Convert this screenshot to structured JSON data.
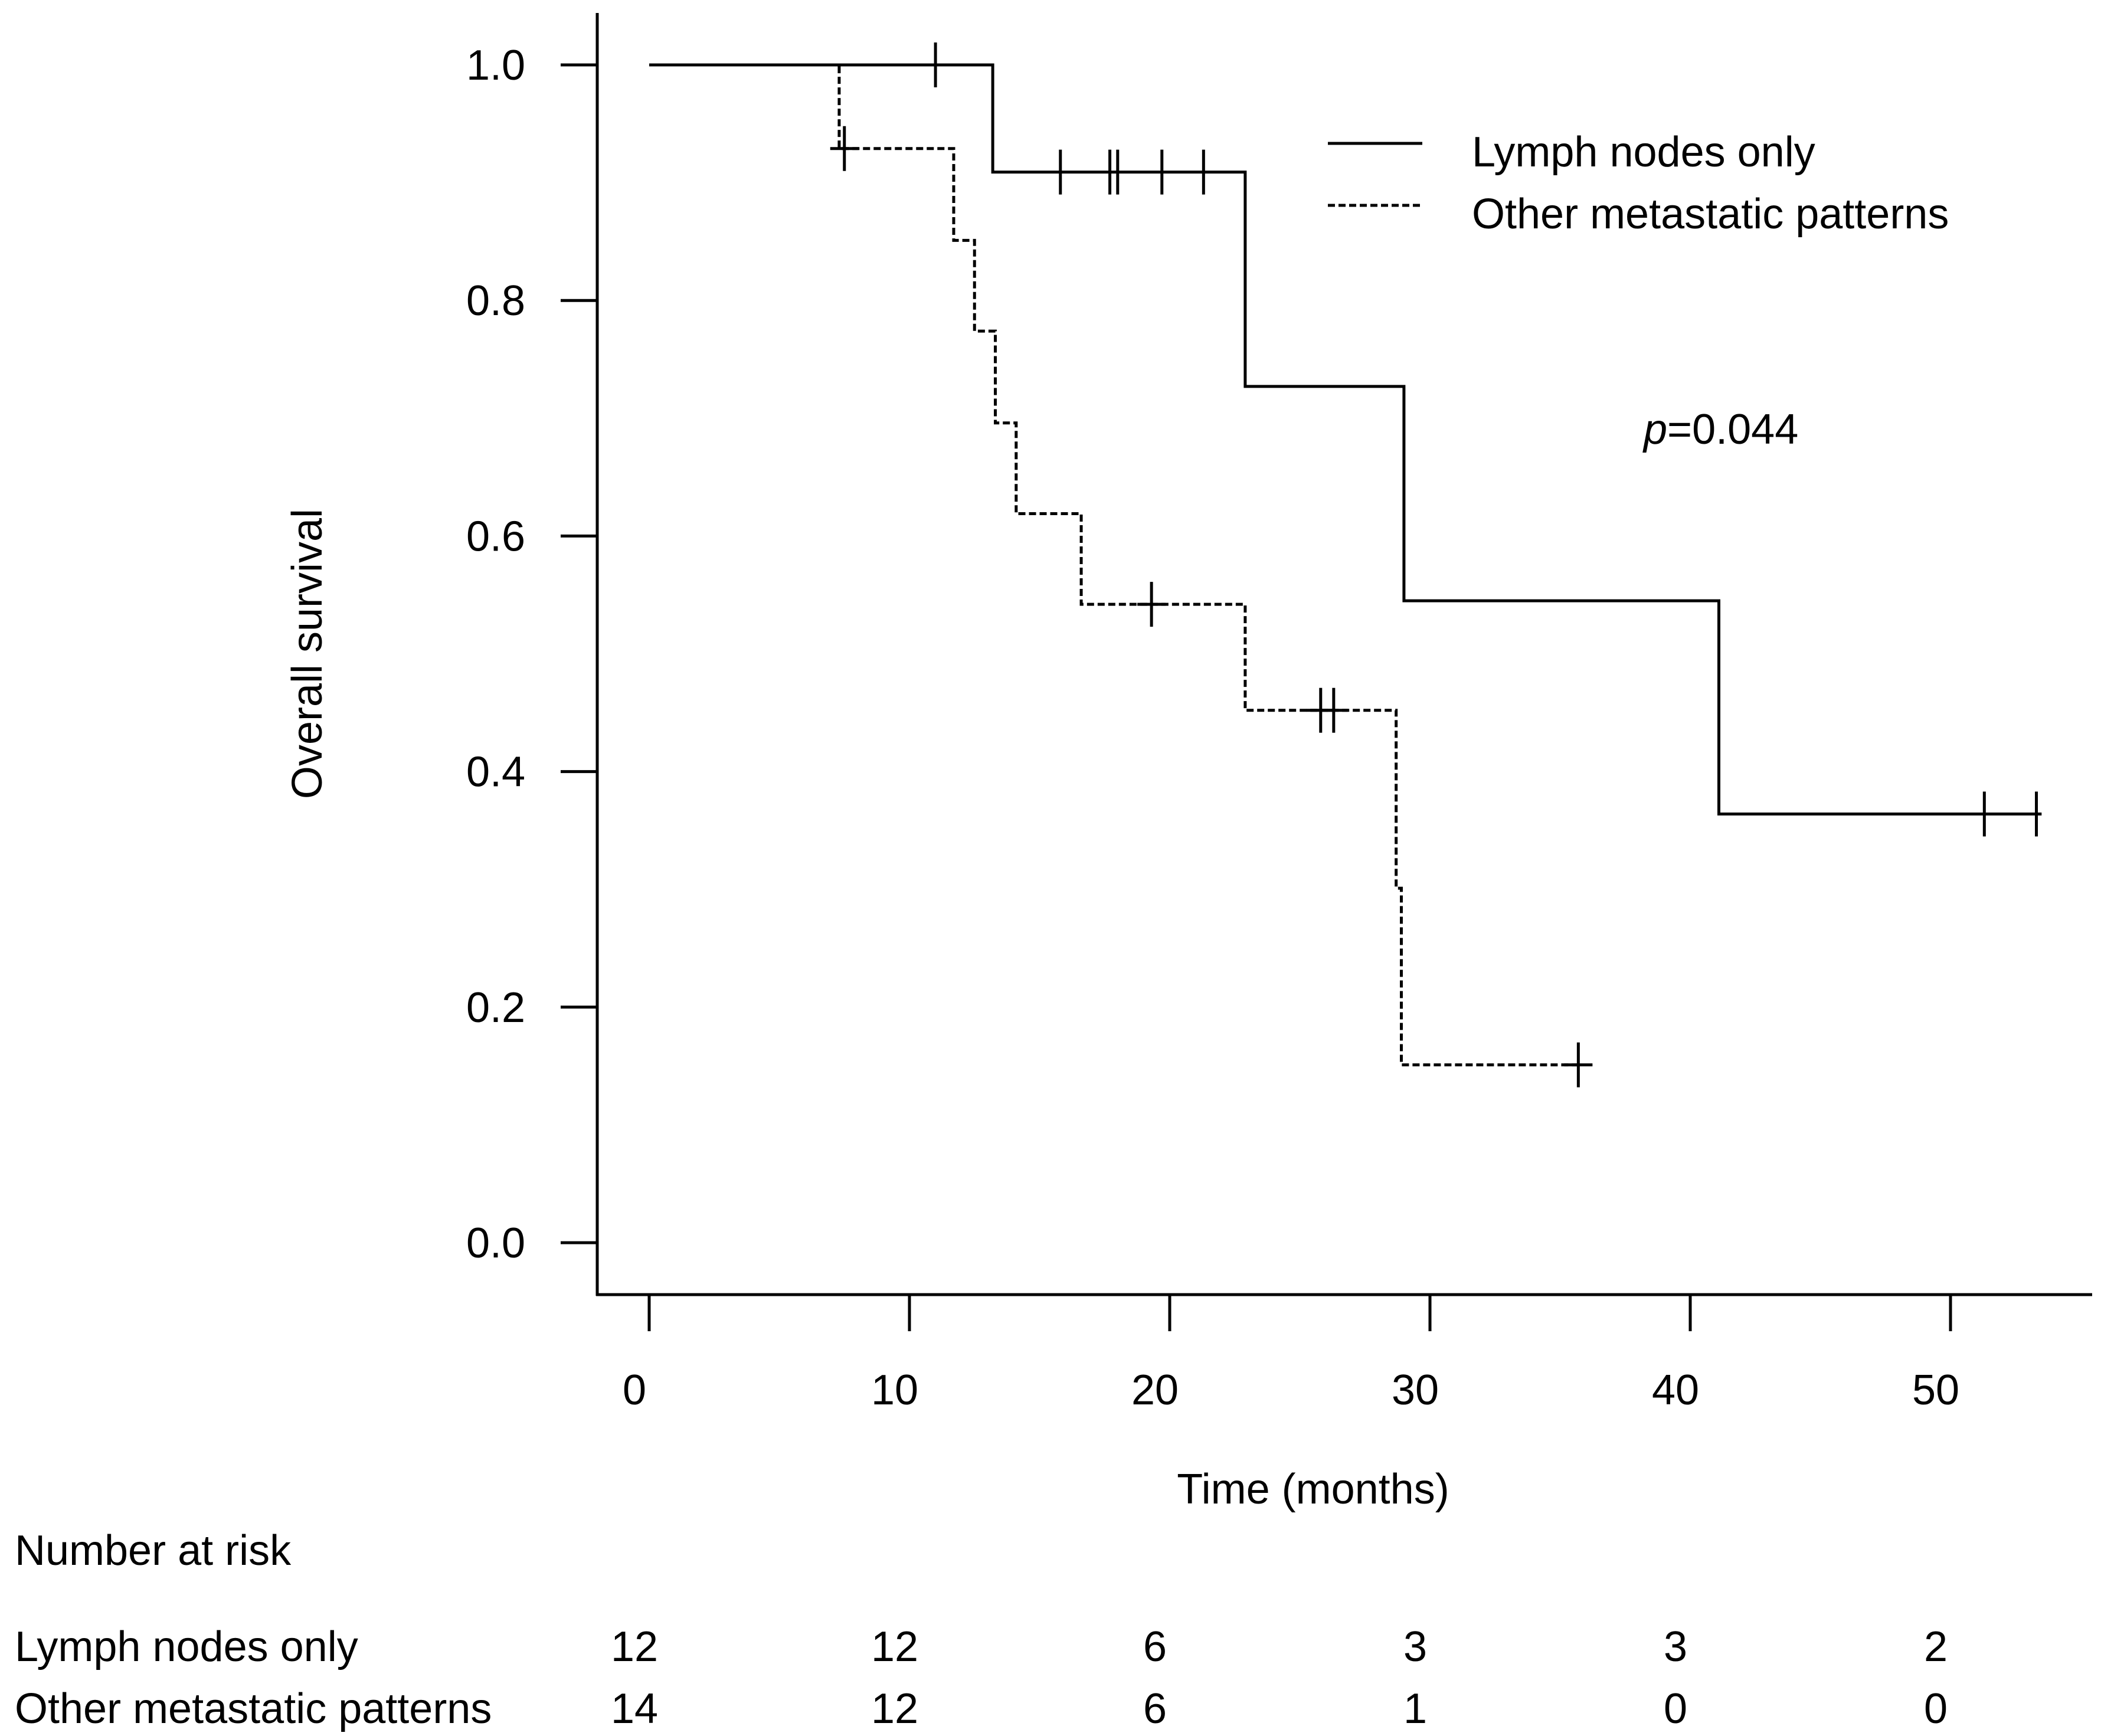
{
  "chart_data": {
    "type": "line",
    "subtype": "kaplan-meier",
    "title": "",
    "xlabel": "Time (months)",
    "ylabel": "Overall survival",
    "xlim": [
      0,
      55
    ],
    "ylim": [
      0,
      1.0
    ],
    "x_ticks": [
      "0",
      "10",
      "20",
      "30",
      "40",
      "50"
    ],
    "y_ticks": [
      "0.0",
      "0.2",
      "0.4",
      "0.6",
      "0.8",
      "1.0"
    ],
    "legend_position": "top-right",
    "annotation": {
      "italic": "p",
      "text": "=0.044"
    },
    "series": [
      {
        "name": "Lymph nodes only",
        "style": "solid",
        "steps": [
          [
            0,
            1.0
          ],
          [
            13.2,
            0.909
          ],
          [
            22.9,
            0.727
          ],
          [
            29.0,
            0.545
          ],
          [
            41.1,
            0.364
          ]
        ],
        "end_time": 53.5,
        "censored": [
          [
            11.0,
            1.0
          ],
          [
            15.8,
            0.909
          ],
          [
            17.7,
            0.909
          ],
          [
            18.0,
            0.909
          ],
          [
            19.7,
            0.909
          ],
          [
            21.3,
            0.909
          ],
          [
            51.3,
            0.364
          ],
          [
            53.3,
            0.364
          ]
        ]
      },
      {
        "name": "Other metastatic patterns",
        "style": "dashed",
        "steps": [
          [
            0,
            1.0
          ],
          [
            7.3,
            0.929
          ],
          [
            11.7,
            0.851
          ],
          [
            12.5,
            0.774
          ],
          [
            13.3,
            0.696
          ],
          [
            14.1,
            0.619
          ],
          [
            16.6,
            0.542
          ],
          [
            22.9,
            0.452
          ],
          [
            28.7,
            0.301
          ],
          [
            28.9,
            0.151
          ]
        ],
        "end_time": 35.7,
        "censored": [
          [
            7.5,
            0.929
          ],
          [
            19.3,
            0.542
          ],
          [
            25.8,
            0.452
          ],
          [
            26.3,
            0.452
          ],
          [
            35.7,
            0.151
          ]
        ]
      }
    ],
    "risk_table": {
      "title": "Number at risk",
      "times": [
        0,
        10,
        20,
        30,
        40,
        50
      ],
      "rows": [
        {
          "label": "Lymph nodes only",
          "values": [
            "12",
            "12",
            "6",
            "3",
            "3",
            "2"
          ]
        },
        {
          "label": "Other metastatic patterns",
          "values": [
            "14",
            "12",
            "6",
            "1",
            "0",
            "0"
          ]
        }
      ]
    }
  }
}
